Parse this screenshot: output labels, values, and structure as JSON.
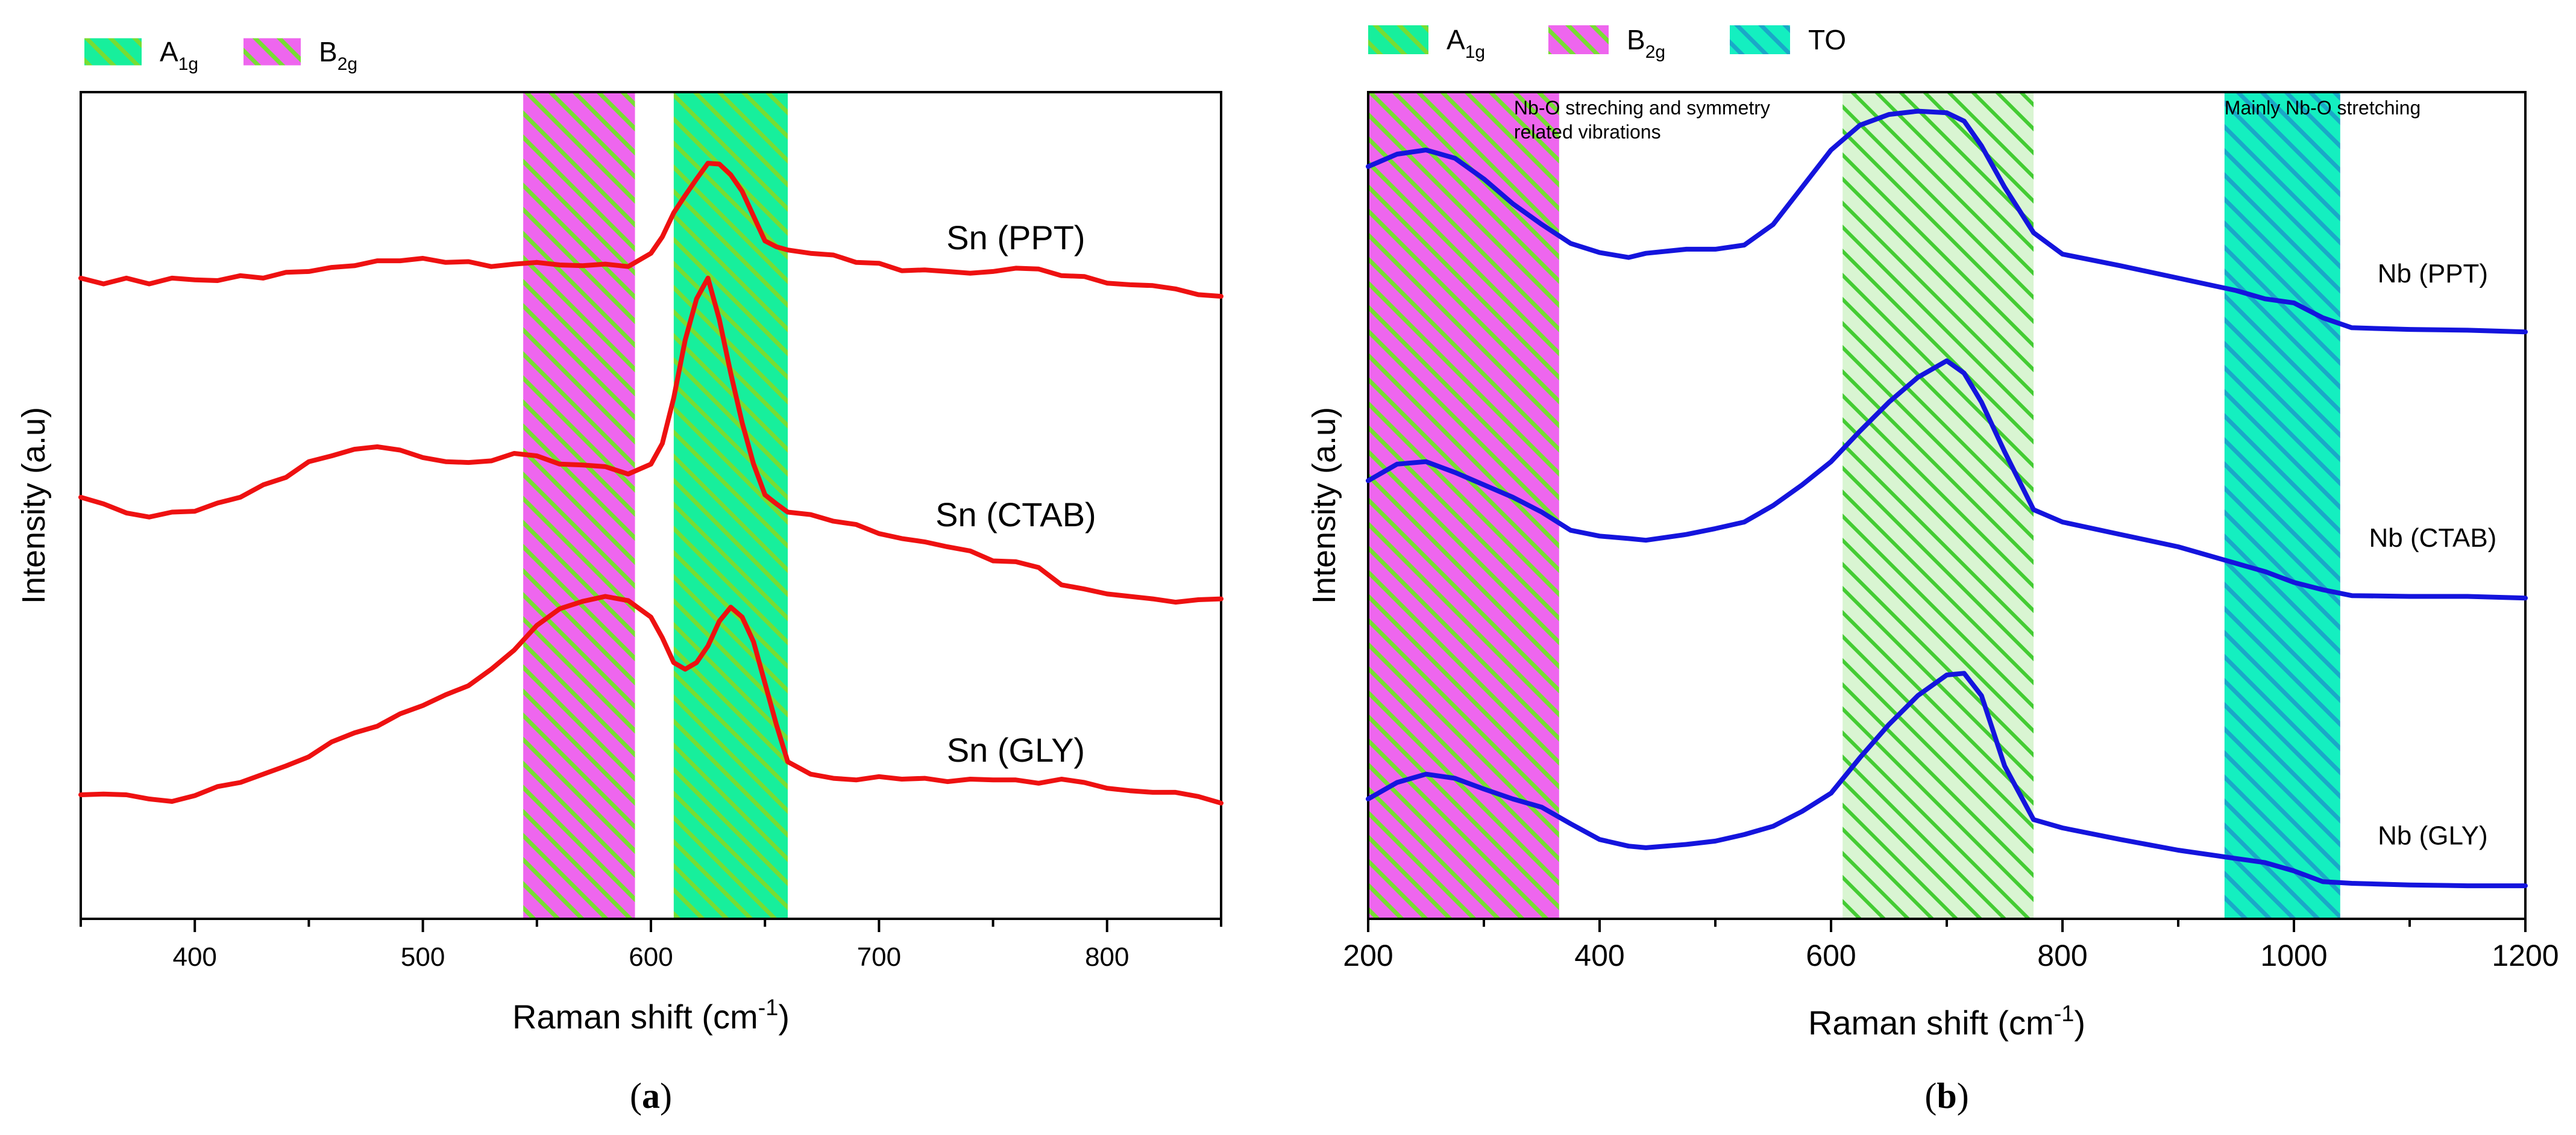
{
  "colors": {
    "a1g_bg": "#17ef9c",
    "a1g_stripe": "#77dd33",
    "b2g_bg": "#ee66ee",
    "b2g_stripe": "#77dd33",
    "to_bg": "#14efc0",
    "to_stripe": "#1aa8c8",
    "a1g_light_bg": "#d9f5d2",
    "a1g_light_stripe": "#44cc33",
    "red": "#ee1111",
    "blue": "#1414dd"
  },
  "chart_data": [
    {
      "type": "line",
      "panel_label": "a",
      "title": "",
      "xlabel": "Raman shift (cm",
      "xlabel_sup": "-1",
      "xlabel_end": ")",
      "ylabel": "Intensity (a.u)",
      "xlim": [
        350,
        850
      ],
      "ylim": [
        0,
        100
      ],
      "x_ticks": [
        "400",
        "500",
        "600",
        "700",
        "800"
      ],
      "legend": [
        {
          "name": "A",
          "sub": "1g",
          "pattern": "a1g"
        },
        {
          "name": "B",
          "sub": "2g",
          "pattern": "b2g"
        }
      ],
      "bands": [
        {
          "name": "B2g",
          "x0": 544,
          "x1": 593,
          "pattern": "b2g"
        },
        {
          "name": "A1g",
          "x0": 610,
          "x1": 660,
          "pattern": "a1g"
        }
      ],
      "series": [
        {
          "name": "Sn (PPT)",
          "label_x": 760,
          "label_y": 81,
          "x": [
            350,
            360,
            370,
            380,
            390,
            400,
            410,
            420,
            430,
            440,
            450,
            460,
            470,
            480,
            490,
            500,
            510,
            520,
            530,
            540,
            550,
            560,
            570,
            580,
            590,
            600,
            605,
            610,
            615,
            620,
            625,
            630,
            635,
            640,
            645,
            650,
            655,
            660,
            670,
            680,
            690,
            700,
            710,
            720,
            730,
            740,
            750,
            760,
            770,
            780,
            790,
            800,
            810,
            820,
            830,
            840,
            850
          ],
          "y": [
            77.5,
            76.8,
            77.5,
            76.8,
            77.5,
            77.3,
            77.2,
            77.8,
            77.5,
            78.2,
            78.3,
            78.8,
            79,
            79.6,
            79.6,
            79.9,
            79.4,
            79.5,
            78.9,
            79.2,
            79.4,
            79.1,
            79,
            79.2,
            78.9,
            80.5,
            82.5,
            85.4,
            87.5,
            89.5,
            91.4,
            91.3,
            90,
            88,
            85,
            82,
            81.3,
            80.9,
            80.5,
            80.3,
            79.4,
            79.3,
            78.4,
            78.5,
            78.3,
            78.1,
            78.3,
            78.7,
            78.6,
            77.8,
            77.7,
            76.9,
            76.7,
            76.6,
            76.2,
            75.5,
            75.3
          ]
        },
        {
          "name": "Sn (CTAB)",
          "label_x": 760,
          "label_y": 47.5,
          "x": [
            350,
            360,
            370,
            380,
            390,
            400,
            410,
            420,
            430,
            440,
            450,
            460,
            470,
            480,
            490,
            500,
            510,
            520,
            530,
            540,
            550,
            560,
            570,
            580,
            590,
            600,
            605,
            610,
            615,
            620,
            625,
            630,
            635,
            640,
            645,
            650,
            655,
            660,
            670,
            680,
            690,
            700,
            710,
            720,
            730,
            740,
            750,
            760,
            770,
            780,
            790,
            800,
            810,
            820,
            830,
            840,
            850
          ],
          "y": [
            51,
            50.2,
            49.1,
            48.6,
            49.2,
            49.3,
            50.3,
            51,
            52.5,
            53.4,
            55.3,
            56,
            56.8,
            57.1,
            56.7,
            55.8,
            55.3,
            55.2,
            55.4,
            56.3,
            56,
            55,
            54.9,
            54.7,
            53.8,
            55,
            57.5,
            63,
            70,
            75,
            77.5,
            72.5,
            66,
            60,
            55,
            51.3,
            50.2,
            49.2,
            48.9,
            48.1,
            47.7,
            46.6,
            46,
            45.6,
            45,
            44.5,
            43.3,
            43.2,
            42.5,
            40.4,
            39.9,
            39.3,
            39,
            38.7,
            38.3,
            38.6,
            38.7
          ]
        },
        {
          "name": "Sn (GLY)",
          "label_x": 760,
          "label_y": 19,
          "x": [
            350,
            360,
            370,
            380,
            390,
            400,
            410,
            420,
            430,
            440,
            450,
            460,
            470,
            480,
            490,
            500,
            510,
            520,
            530,
            540,
            550,
            560,
            570,
            580,
            590,
            600,
            605,
            610,
            615,
            620,
            625,
            630,
            635,
            640,
            645,
            650,
            655,
            660,
            670,
            680,
            690,
            700,
            710,
            720,
            730,
            740,
            750,
            760,
            770,
            780,
            790,
            800,
            810,
            820,
            830,
            840,
            850
          ],
          "y": [
            15,
            15.1,
            15,
            14.5,
            14.2,
            14.9,
            16,
            16.5,
            17.5,
            18.5,
            19.6,
            21.4,
            22.5,
            23.3,
            24.8,
            25.8,
            27.1,
            28.2,
            30.2,
            32.5,
            35.5,
            37.5,
            38.4,
            39,
            38.5,
            36.5,
            34,
            31,
            30.2,
            31,
            33,
            36,
            37.7,
            36.5,
            33.5,
            28.5,
            23.5,
            19,
            17.5,
            17,
            16.8,
            17.2,
            16.9,
            17,
            16.6,
            16.9,
            16.8,
            16.8,
            16.4,
            16.9,
            16.5,
            15.8,
            15.5,
            15.3,
            15.3,
            14.8,
            14
          ]
        }
      ]
    },
    {
      "type": "line",
      "panel_label": "b",
      "title": "",
      "xlabel": "Raman shift (cm",
      "xlabel_sup": "-1",
      "xlabel_end": ")",
      "ylabel": "Intensity (a.u)",
      "xlim": [
        200,
        1200
      ],
      "ylim": [
        0,
        100
      ],
      "x_ticks": [
        "200",
        "400",
        "600",
        "800",
        "1000",
        "1200"
      ],
      "legend": [
        {
          "name": "A",
          "sub": "1g",
          "pattern": "a1g"
        },
        {
          "name": "B",
          "sub": "2g",
          "pattern": "b2g"
        },
        {
          "name": "TO",
          "sub": "",
          "pattern": "to"
        }
      ],
      "annotations": [
        {
          "line1": "Nb-O streching and symmetry",
          "line2": "related vibrations",
          "x": 326,
          "y": 97.3
        },
        {
          "line1": "Mainly Nb-O stretching",
          "line2": "",
          "x": 940,
          "y": 97.3
        }
      ],
      "bands": [
        {
          "name": "B2g",
          "x0": 200,
          "x1": 365,
          "pattern": "b2g"
        },
        {
          "name": "A1g",
          "x0": 610,
          "x1": 775,
          "pattern": "a1g_light"
        },
        {
          "name": "TO",
          "x0": 940,
          "x1": 1040,
          "pattern": "to"
        }
      ],
      "series": [
        {
          "name": "Nb (PPT)",
          "label_x": 1120,
          "label_y": 77,
          "x": [
            200,
            225,
            250,
            275,
            300,
            325,
            350,
            375,
            400,
            425,
            440,
            475,
            500,
            525,
            550,
            575,
            600,
            625,
            650,
            675,
            700,
            715,
            730,
            750,
            775,
            800,
            850,
            900,
            950,
            975,
            1000,
            1025,
            1050,
            1100,
            1150,
            1200
          ],
          "y": [
            91,
            92.5,
            93,
            92,
            89.5,
            86.5,
            84,
            81.7,
            80.6,
            80,
            80.5,
            81,
            81,
            81.5,
            84,
            88.5,
            93,
            96,
            97.3,
            97.7,
            97.5,
            96.5,
            93.5,
            88.5,
            83,
            80.4,
            79,
            77.5,
            76,
            75,
            74.5,
            72.7,
            71.5,
            71.3,
            71.2,
            71
          ]
        },
        {
          "name": "Nb (CTAB)",
          "label_x": 1120,
          "label_y": 45,
          "x": [
            200,
            225,
            250,
            275,
            300,
            325,
            350,
            375,
            400,
            425,
            440,
            475,
            500,
            525,
            550,
            575,
            600,
            625,
            650,
            675,
            700,
            715,
            730,
            750,
            775,
            800,
            850,
            900,
            950,
            975,
            1000,
            1025,
            1050,
            1100,
            1150,
            1200
          ],
          "y": [
            53,
            55,
            55.3,
            54,
            52.5,
            51,
            49.2,
            47,
            46.3,
            46,
            45.8,
            46.5,
            47.2,
            48,
            50,
            52.5,
            55.3,
            59,
            62.5,
            65.5,
            67.5,
            66,
            62.5,
            56.5,
            49.5,
            48,
            46.5,
            45,
            43,
            42,
            40.7,
            39.8,
            39.1,
            39,
            39,
            38.8
          ]
        },
        {
          "name": "Nb (GLY)",
          "label_x": 1120,
          "label_y": 9,
          "x": [
            200,
            225,
            250,
            275,
            300,
            325,
            350,
            375,
            400,
            425,
            440,
            475,
            500,
            525,
            550,
            575,
            600,
            625,
            650,
            675,
            700,
            715,
            730,
            750,
            775,
            800,
            850,
            900,
            950,
            975,
            1000,
            1025,
            1050,
            1100,
            1150,
            1200
          ],
          "y": [
            14.5,
            16.5,
            17.5,
            17,
            15.7,
            14.5,
            13.5,
            11.5,
            9.6,
            8.8,
            8.6,
            9,
            9.4,
            10.2,
            11.2,
            13,
            15.2,
            19.5,
            23.5,
            27,
            29.5,
            29.7,
            27,
            18.5,
            12,
            11,
            9.6,
            8.3,
            7.3,
            6.8,
            5.8,
            4.5,
            4.3,
            4.1,
            4,
            4
          ]
        }
      ]
    }
  ],
  "panel_labels": [
    {
      "open": "(",
      "letter": "a",
      "close": ")"
    },
    {
      "open": "(",
      "letter": "b",
      "close": ")"
    }
  ]
}
